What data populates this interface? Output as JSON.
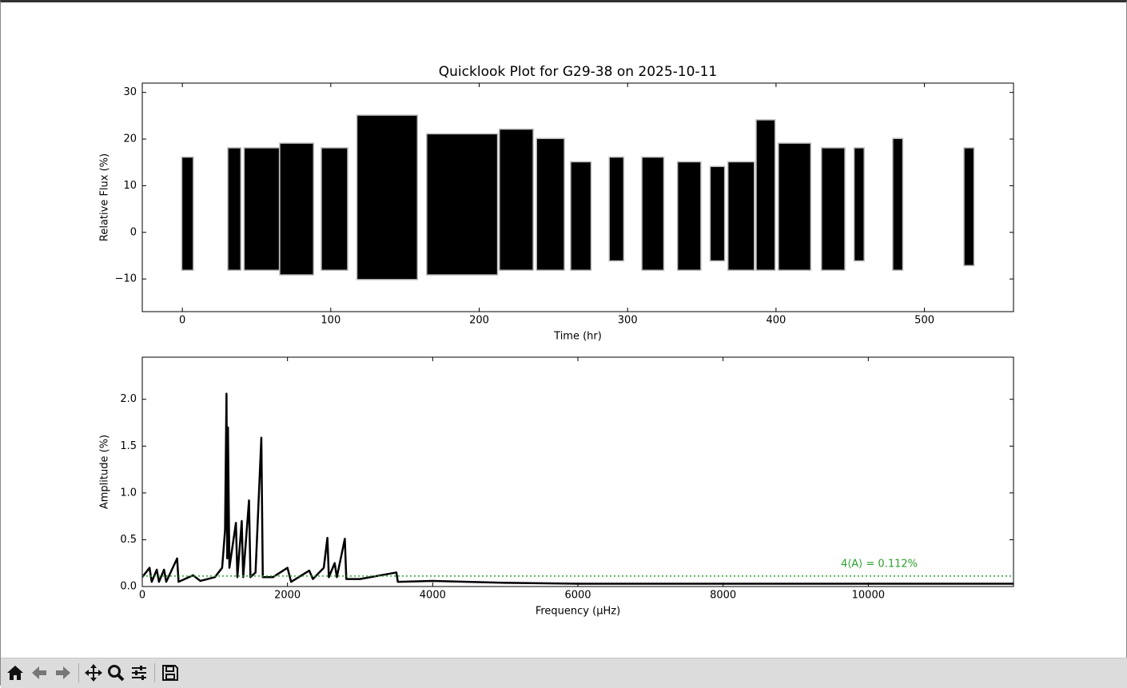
{
  "chart_data": [
    {
      "type": "range",
      "title": "Quicklook Plot for G29-38 on 2025-10-11",
      "xlabel": "Time (hr)",
      "ylabel": "Relative Flux (%)",
      "blocks": [
        {
          "start": 0,
          "end": 7,
          "low": -8,
          "high": 16
        },
        {
          "start": 31,
          "end": 39,
          "low": -8,
          "high": 18
        },
        {
          "start": 42,
          "end": 65,
          "low": -8,
          "high": 18
        },
        {
          "start": 66,
          "end": 88,
          "low": -9,
          "high": 19
        },
        {
          "start": 94,
          "end": 111,
          "low": -8,
          "high": 18
        },
        {
          "start": 118,
          "end": 158,
          "low": -10,
          "high": 25
        },
        {
          "start": 165,
          "end": 212,
          "low": -9,
          "high": 21
        },
        {
          "start": 214,
          "end": 236,
          "low": -8,
          "high": 22
        },
        {
          "start": 239,
          "end": 257,
          "low": -8,
          "high": 20
        },
        {
          "start": 262,
          "end": 275,
          "low": -8,
          "high": 15
        },
        {
          "start": 288,
          "end": 297,
          "low": -6,
          "high": 16
        },
        {
          "start": 310,
          "end": 324,
          "low": -8,
          "high": 16
        },
        {
          "start": 334,
          "end": 349,
          "low": -8,
          "high": 15
        },
        {
          "start": 356,
          "end": 365,
          "low": -6,
          "high": 14
        },
        {
          "start": 368,
          "end": 385,
          "low": -8,
          "high": 15
        },
        {
          "start": 387,
          "end": 399,
          "low": -8,
          "high": 24
        },
        {
          "start": 402,
          "end": 423,
          "low": -8,
          "high": 19
        },
        {
          "start": 431,
          "end": 446,
          "low": -8,
          "high": 18
        },
        {
          "start": 453,
          "end": 459,
          "low": -6,
          "high": 18
        },
        {
          "start": 479,
          "end": 485,
          "low": -8,
          "high": 20
        },
        {
          "start": 527,
          "end": 533,
          "low": -7,
          "high": 18
        }
      ],
      "color": "#000000",
      "xlim": [
        -27,
        560
      ],
      "xticks": [
        0,
        100,
        200,
        300,
        400,
        500
      ],
      "ylim": [
        -17,
        32
      ],
      "yticks": [
        {
          "value": -10,
          "label": "−10"
        },
        0,
        10,
        20,
        30
      ]
    },
    {
      "type": "line",
      "xlabel": "Frequency (μHz)",
      "ylabel": "Amplitude (%)",
      "x": [
        0,
        100,
        130,
        200,
        230,
        300,
        330,
        480,
        500,
        700,
        800,
        1000,
        1100,
        1140,
        1160,
        1170,
        1180,
        1200,
        1290,
        1310,
        1370,
        1390,
        1470,
        1490,
        1560,
        1640,
        1660,
        1800,
        2000,
        2050,
        2300,
        2350,
        2500,
        2550,
        2570,
        2650,
        2680,
        2790,
        2810,
        3000,
        3500,
        3520,
        4000,
        5000,
        6000,
        8000,
        10000,
        12000
      ],
      "values": [
        0.1,
        0.2,
        0.05,
        0.18,
        0.05,
        0.18,
        0.05,
        0.3,
        0.05,
        0.12,
        0.06,
        0.1,
        0.2,
        0.6,
        2.06,
        0.3,
        1.7,
        0.2,
        0.68,
        0.1,
        0.7,
        0.1,
        0.92,
        0.1,
        0.15,
        1.59,
        0.1,
        0.1,
        0.2,
        0.05,
        0.17,
        0.08,
        0.2,
        0.52,
        0.1,
        0.25,
        0.1,
        0.51,
        0.08,
        0.08,
        0.15,
        0.05,
        0.06,
        0.04,
        0.03,
        0.03,
        0.03,
        0.03
      ],
      "color": "#000000",
      "threshold": 0.112,
      "threshold_label": "4⟨A⟩ = 0.112%",
      "threshold_color": "#2ca02c",
      "xlim": [
        0,
        12000
      ],
      "xticks": [
        0,
        2000,
        4000,
        6000,
        8000,
        10000
      ],
      "ylim": [
        0,
        2.45
      ],
      "yticks": [
        {
          "value": 0,
          "label": "0.0"
        },
        0.5,
        {
          "value": 1,
          "label": "1.0"
        },
        1.5,
        {
          "value": 2,
          "label": "2.0"
        }
      ]
    }
  ]
}
